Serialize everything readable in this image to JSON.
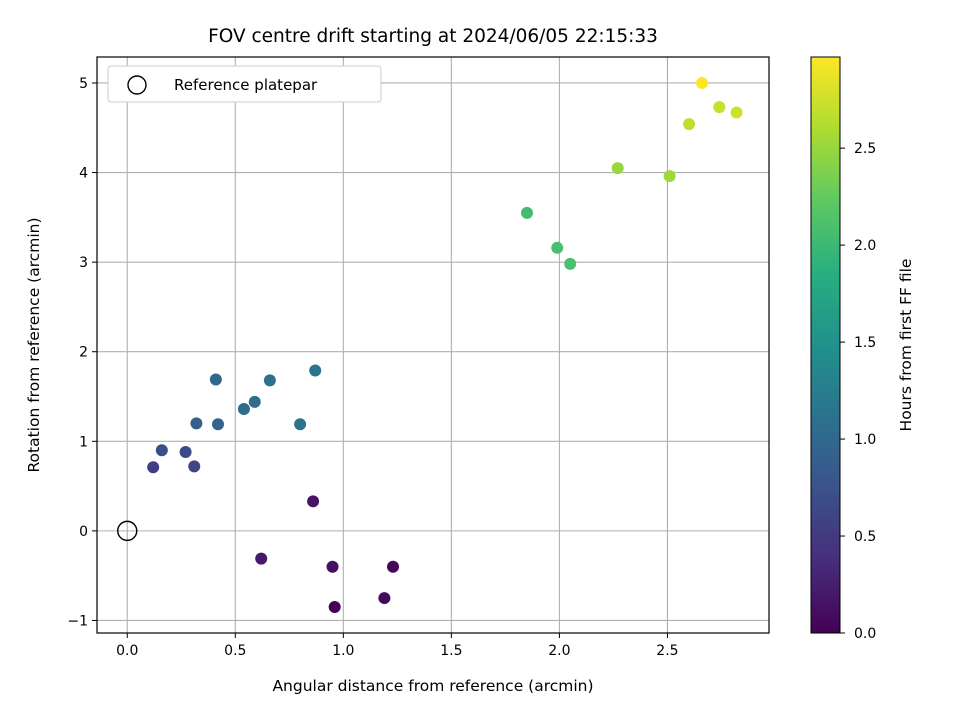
{
  "chart_data": {
    "type": "scatter",
    "title": "FOV centre drift starting at 2024/06/05 22:15:33",
    "xlabel": "Angular distance from reference (arcmin)",
    "ylabel": "Rotation from reference (arcmin)",
    "xlim": [
      -0.14,
      2.97
    ],
    "ylim": [
      -1.14,
      5.29
    ],
    "xticks": [
      0.0,
      0.5,
      1.0,
      1.5,
      2.0,
      2.5
    ],
    "xtick_labels": [
      "0.0",
      "0.5",
      "1.0",
      "1.5",
      "2.0",
      "2.5"
    ],
    "yticks": [
      -1,
      0,
      1,
      2,
      3,
      4,
      5
    ],
    "ytick_labels": [
      "−1",
      "0",
      "1",
      "2",
      "3",
      "4",
      "5"
    ],
    "grid": true,
    "legend": {
      "position": "top-left",
      "entries": [
        "Reference platepar"
      ]
    },
    "reference_point": {
      "name": "Reference platepar",
      "x": 0.0,
      "y": 0.0
    },
    "colorbar": {
      "label": "Hours from first FF file",
      "colormap": "viridis",
      "range": [
        0.0,
        2.97
      ],
      "ticks": [
        0.0,
        0.5,
        1.0,
        1.5,
        2.0,
        2.5
      ],
      "tick_labels": [
        "0.0",
        "0.5",
        "1.0",
        "1.5",
        "2.0",
        "2.5"
      ]
    },
    "points": [
      {
        "x": 0.96,
        "y": -0.85,
        "t": 0.02
      },
      {
        "x": 1.23,
        "y": -0.4,
        "t": 0.05
      },
      {
        "x": 1.19,
        "y": -0.75,
        "t": 0.08
      },
      {
        "x": 0.95,
        "y": -0.4,
        "t": 0.13
      },
      {
        "x": 0.86,
        "y": 0.33,
        "t": 0.16
      },
      {
        "x": 0.62,
        "y": -0.31,
        "t": 0.2
      },
      {
        "x": 0.12,
        "y": 0.71,
        "t": 0.55
      },
      {
        "x": 0.31,
        "y": 0.72,
        "t": 0.62
      },
      {
        "x": 0.27,
        "y": 0.88,
        "t": 0.66
      },
      {
        "x": 0.16,
        "y": 0.9,
        "t": 0.7
      },
      {
        "x": 0.32,
        "y": 1.2,
        "t": 0.9
      },
      {
        "x": 0.42,
        "y": 1.19,
        "t": 0.95
      },
      {
        "x": 0.41,
        "y": 1.69,
        "t": 1.0
      },
      {
        "x": 0.54,
        "y": 1.36,
        "t": 1.03
      },
      {
        "x": 0.59,
        "y": 1.44,
        "t": 1.05
      },
      {
        "x": 0.66,
        "y": 1.68,
        "t": 1.08
      },
      {
        "x": 0.8,
        "y": 1.19,
        "t": 1.1
      },
      {
        "x": 0.87,
        "y": 1.79,
        "t": 1.12
      },
      {
        "x": 1.85,
        "y": 3.55,
        "t": 2.05
      },
      {
        "x": 1.99,
        "y": 3.16,
        "t": 2.08
      },
      {
        "x": 2.05,
        "y": 2.98,
        "t": 2.1
      },
      {
        "x": 2.27,
        "y": 4.05,
        "t": 2.5
      },
      {
        "x": 2.51,
        "y": 3.96,
        "t": 2.53
      },
      {
        "x": 2.6,
        "y": 4.54,
        "t": 2.68
      },
      {
        "x": 2.74,
        "y": 4.73,
        "t": 2.72
      },
      {
        "x": 2.82,
        "y": 4.67,
        "t": 2.75
      },
      {
        "x": 2.66,
        "y": 5.0,
        "t": 2.97
      }
    ]
  }
}
